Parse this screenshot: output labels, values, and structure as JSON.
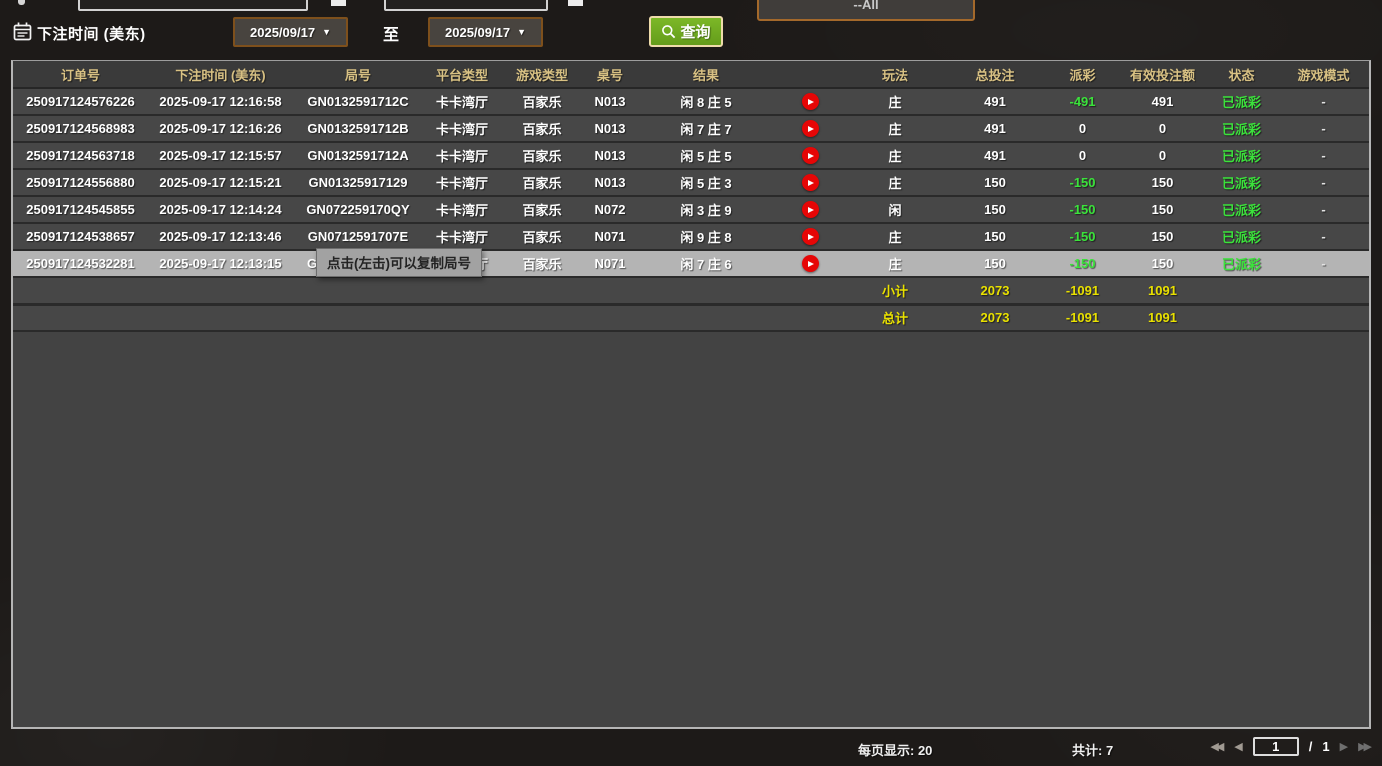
{
  "colors": {
    "positive_green": "#3be23b",
    "summary_yellow": "#e8e000",
    "header_gold": "#d8c183",
    "button_green": "#6fae21",
    "date_border_orange": "#7e501c",
    "play_icon_red": "#e60606",
    "highlight_row_gray": "#b4b4b4"
  },
  "icons": {
    "calendar": "calendar-icon",
    "magnifier": "search-icon",
    "play": "play-video-icon",
    "dropdown_arrow": "▼",
    "first_page": "◀◀",
    "prev_page": "◀",
    "next_page": "▶",
    "last_page": "▶▶"
  },
  "top_cutoff_bar": {
    "dropdown_value": "--All"
  },
  "filter_bar": {
    "label": "下注时间 (美东)",
    "date_from": "2025/09/17",
    "between_label": "至",
    "date_to": "2025/09/17",
    "search_label": "查询"
  },
  "tooltip": {
    "text": "点击(左击)可以复制局号"
  },
  "table": {
    "headers": [
      "订单号",
      "下注时间 (美东)",
      "局号",
      "平台类型",
      "游戏类型",
      "桌号",
      "结果",
      "",
      "玩法",
      "总投注",
      "派彩",
      "有效投注额",
      "状态",
      "游戏模式"
    ],
    "rows": [
      {
        "order": "250917124576226",
        "time": "2025-09-17 12:16:58",
        "round": "GN0132591712C",
        "platform": "卡卡湾厅",
        "game": "百家乐",
        "table_no": "N013",
        "result": "闲 8 庄 5",
        "play": "庄",
        "total_bet": "491",
        "payout": "-491",
        "valid_bet": "491",
        "status": "已派彩",
        "mode": "-"
      },
      {
        "order": "250917124568983",
        "time": "2025-09-17 12:16:26",
        "round": "GN0132591712B",
        "platform": "卡卡湾厅",
        "game": "百家乐",
        "table_no": "N013",
        "result": "闲 7 庄 7",
        "play": "庄",
        "total_bet": "491",
        "payout": "0",
        "valid_bet": "0",
        "status": "已派彩",
        "mode": "-"
      },
      {
        "order": "250917124563718",
        "time": "2025-09-17 12:15:57",
        "round": "GN0132591712A",
        "platform": "卡卡湾厅",
        "game": "百家乐",
        "table_no": "N013",
        "result": "闲 5 庄 5",
        "play": "庄",
        "total_bet": "491",
        "payout": "0",
        "valid_bet": "0",
        "status": "已派彩",
        "mode": "-"
      },
      {
        "order": "250917124556880",
        "time": "2025-09-17 12:15:21",
        "round": "GN01325917129",
        "platform": "卡卡湾厅",
        "game": "百家乐",
        "table_no": "N013",
        "result": "闲 5 庄 3",
        "play": "庄",
        "total_bet": "150",
        "payout": "-150",
        "valid_bet": "150",
        "status": "已派彩",
        "mode": "-"
      },
      {
        "order": "250917124545855",
        "time": "2025-09-17 12:14:24",
        "round": "GN072259170QY",
        "platform": "卡卡湾厅",
        "game": "百家乐",
        "table_no": "N072",
        "result": "闲 3 庄 9",
        "play": "闲",
        "total_bet": "150",
        "payout": "-150",
        "valid_bet": "150",
        "status": "已派彩",
        "mode": "-"
      },
      {
        "order": "250917124538657",
        "time": "2025-09-17 12:13:46",
        "round": "GN0712591707E",
        "platform": "卡卡湾厅",
        "game": "百家乐",
        "table_no": "N071",
        "result": "闲 9 庄 8",
        "play": "庄",
        "total_bet": "150",
        "payout": "-150",
        "valid_bet": "150",
        "status": "已派彩",
        "mode": "-"
      },
      {
        "order": "250917124532281",
        "time": "2025-09-17 12:13:15",
        "round": "GN071259170ZD",
        "platform": "卡卡湾厅",
        "game": "百家乐",
        "table_no": "N071",
        "result": "闲 7 庄 6",
        "play": "庄",
        "total_bet": "150",
        "payout": "-150",
        "valid_bet": "150",
        "status": "已派彩",
        "mode": "-",
        "highlighted": true
      }
    ],
    "subtotal_row": {
      "label": "小计",
      "total_bet": "2073",
      "payout": "-1091",
      "valid_bet": "1091"
    },
    "total_row": {
      "label": "总计",
      "total_bet": "2073",
      "payout": "-1091",
      "valid_bet": "1091"
    }
  },
  "footer": {
    "per_page": "每页显示: 20",
    "total_count": "共计: 7",
    "pager": {
      "page": "1",
      "separator": "/",
      "total_pages": "1"
    }
  }
}
